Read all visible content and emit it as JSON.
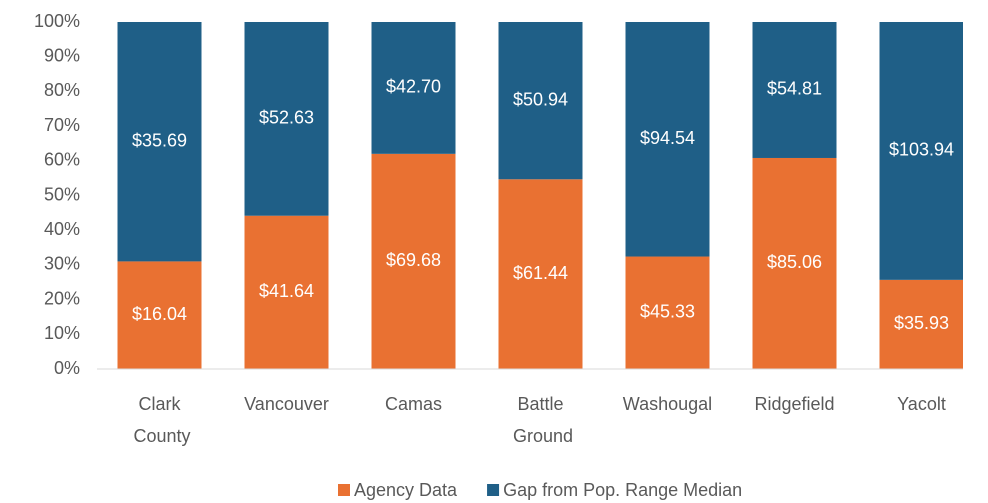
{
  "chart_data": {
    "type": "bar",
    "stacking": "percent",
    "categories": [
      "Clark County",
      "Vancouver",
      "Camas",
      "Battle Ground",
      "Washougal",
      "Ridgefield",
      "Yacolt"
    ],
    "series": [
      {
        "name": "Agency Data",
        "color": "#e97132",
        "values": [
          16.04,
          41.64,
          69.68,
          61.44,
          45.33,
          85.06,
          35.93
        ],
        "value_labels": [
          "$16.04",
          "$41.64",
          "$69.68",
          "$61.44",
          "$45.33",
          "$85.06",
          "$35.93"
        ]
      },
      {
        "name": "Gap from Pop. Range Median",
        "color": "#1f5f87",
        "values": [
          35.69,
          52.63,
          42.7,
          50.94,
          94.54,
          54.81,
          103.94
        ],
        "value_labels": [
          "$35.69",
          "$52.63",
          "$42.70",
          "$50.94",
          "$94.54",
          "$54.81",
          "$103.94"
        ]
      }
    ],
    "ylim": [
      0,
      100
    ],
    "yticks": [
      {
        "value": 0,
        "label": "0%"
      },
      {
        "value": 10,
        "label": "10%"
      },
      {
        "value": 20,
        "label": "20%"
      },
      {
        "value": 30,
        "label": "30%"
      },
      {
        "value": 40,
        "label": "40%"
      },
      {
        "value": 50,
        "label": "50%"
      },
      {
        "value": 60,
        "label": "60%"
      },
      {
        "value": 70,
        "label": "70%"
      },
      {
        "value": 80,
        "label": "80%"
      },
      {
        "value": 90,
        "label": "90%"
      },
      {
        "value": 100,
        "label": "100%"
      }
    ],
    "grid": false,
    "legend": "bottom"
  }
}
